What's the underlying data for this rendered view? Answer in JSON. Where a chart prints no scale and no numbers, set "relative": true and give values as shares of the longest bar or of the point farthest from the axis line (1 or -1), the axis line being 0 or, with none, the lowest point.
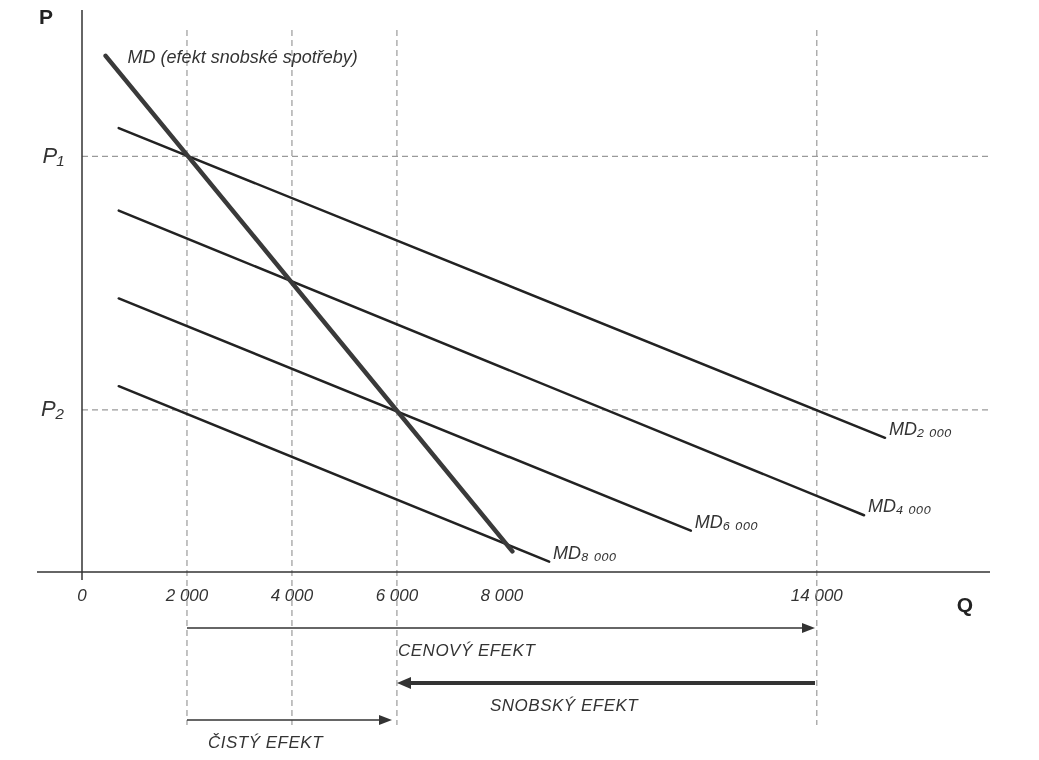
{
  "chart_data": {
    "type": "line",
    "relative": true,
    "xlabel": "Q",
    "ylabel": "P",
    "xlim": [
      0,
      17300
    ],
    "xticks": [
      0,
      {
        "value": 2000,
        "label": "2 000"
      },
      {
        "value": 4000,
        "label": "4 000"
      },
      {
        "value": 6000,
        "label": "6 000"
      },
      {
        "value": 8000,
        "label": "8 000"
      },
      {
        "value": 14000,
        "label": "14 000"
      }
    ],
    "grid": false,
    "legend": false,
    "marker": "none",
    "line_style": "solid",
    "series": [
      {
        "name": "MD (efekt snobské spotřeby)",
        "color": "#3a3a3a",
        "x": [
          450,
          8200
        ],
        "values": [
          1,
          0.04
        ]
      },
      {
        "name": "MD₂ ₀₀₀",
        "color": "#222222",
        "x": [
          700,
          15300
        ],
        "values": [
          0.86,
          0.26
        ]
      },
      {
        "name": "MD₄ ₀₀₀",
        "color": "#222222",
        "x": [
          700,
          14900
        ],
        "values": [
          0.7,
          0.11
        ]
      },
      {
        "name": "MD₆ ₀₀₀",
        "color": "#222222",
        "x": [
          700,
          11600
        ],
        "values": [
          0.53,
          0.08
        ]
      },
      {
        "name": "MD₈ ₀₀₀",
        "color": "#222222",
        "x": [
          700,
          8900
        ],
        "values": [
          0.36,
          0.02
        ]
      }
    ],
    "ref_lines": [
      {
        "axis": "y",
        "value": 0.805,
        "label": "P₁",
        "line_style": "dashed",
        "color": "#9a9a9a"
      },
      {
        "axis": "y",
        "value": 0.314,
        "label": "P₂",
        "line_style": "dashed",
        "color": "#9a9a9a"
      },
      {
        "axis": "x",
        "value": 2000,
        "line_style": "dashed",
        "color": "#9a9a9a"
      },
      {
        "axis": "x",
        "value": 4000,
        "line_style": "dashed",
        "color": "#9a9a9a"
      },
      {
        "axis": "x",
        "value": 6000,
        "line_style": "dashed",
        "color": "#9a9a9a"
      },
      {
        "axis": "x",
        "value": 14000,
        "line_style": "dashed",
        "color": "#9a9a9a"
      }
    ],
    "annotations": [
      "CENOVÝ EFEKT",
      "SNOBSKÝ EFEKT",
      "ČISTÝ EFEKT"
    ]
  }
}
